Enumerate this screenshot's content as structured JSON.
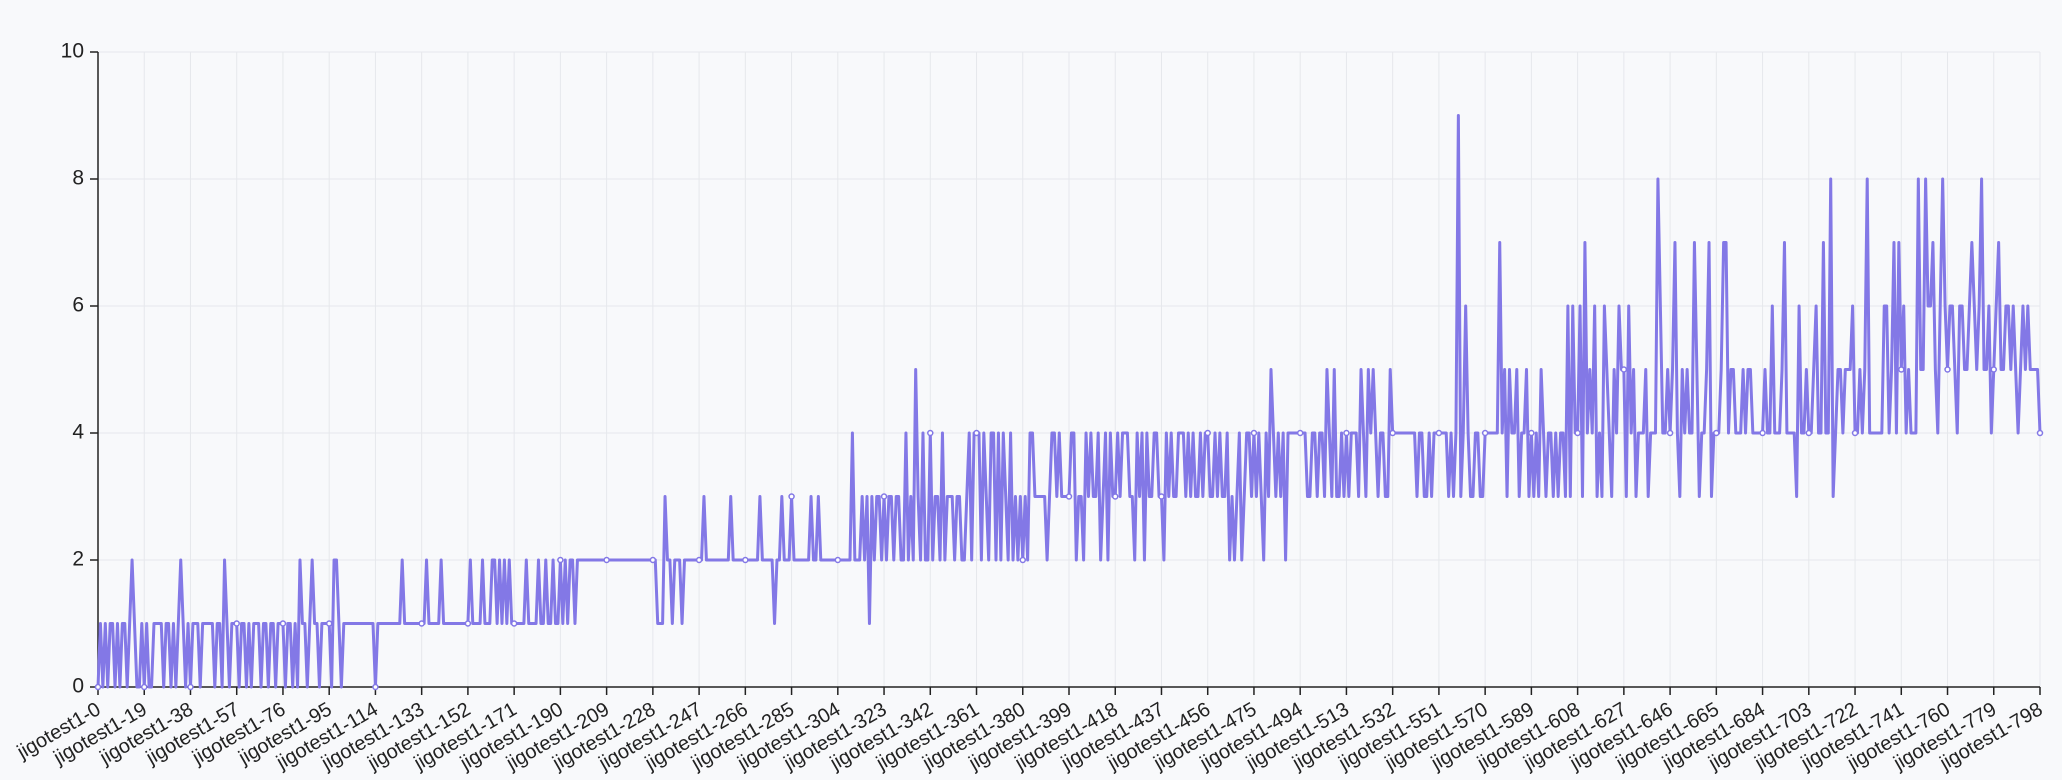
{
  "chart_data": {
    "type": "line",
    "title": "",
    "xlabel": "",
    "ylabel": "",
    "ylim": [
      0,
      10
    ],
    "y_ticks": [
      0,
      2,
      4,
      6,
      8,
      10
    ],
    "grid": true,
    "legend": "none",
    "x_tick_labels": [
      "jigotest1-0",
      "jigotest1-19",
      "jigotest1-38",
      "jigotest1-57",
      "jigotest1-76",
      "jigotest1-95",
      "jigotest1-114",
      "jigotest1-133",
      "jigotest1-152",
      "jigotest1-171",
      "jigotest1-190",
      "jigotest1-209",
      "jigotest1-228",
      "jigotest1-247",
      "jigotest1-266",
      "jigotest1-285",
      "jigotest1-304",
      "jigotest1-323",
      "jigotest1-342",
      "jigotest1-361",
      "jigotest1-380",
      "jigotest1-399",
      "jigotest1-418",
      "jigotest1-437",
      "jigotest1-456",
      "jigotest1-475",
      "jigotest1-494",
      "jigotest1-513",
      "jigotest1-532",
      "jigotest1-551",
      "jigotest1-570",
      "jigotest1-589",
      "jigotest1-608",
      "jigotest1-627",
      "jigotest1-646",
      "jigotest1-665",
      "jigotest1-684",
      "jigotest1-703",
      "jigotest1-722",
      "jigotest1-741",
      "jigotest1-760",
      "jigotest1-779",
      "jigotest1-798"
    ],
    "colors": {
      "series": "#8378e6",
      "grid": "#e6e8ec",
      "axis": "#222222",
      "background": "#f8f9fb"
    },
    "series": [
      {
        "x_prefix": "jigotest1-",
        "x_start": 0,
        "x_end": 798,
        "segments": [
          {
            "from": 0,
            "to": 18,
            "pattern": [
              0,
              1,
              0,
              1,
              0,
              1,
              1,
              0,
              1,
              0,
              1,
              1,
              0,
              1,
              2,
              1,
              0,
              0,
              1
            ]
          },
          {
            "from": 19,
            "to": 37,
            "pattern": [
              0,
              1,
              0,
              0,
              1,
              1,
              1,
              1,
              0,
              1,
              1,
              0,
              1,
              0,
              1,
              2,
              1,
              0,
              1
            ]
          },
          {
            "from": 38,
            "to": 56,
            "pattern": [
              0,
              1,
              1,
              1,
              0,
              1,
              1,
              1,
              1,
              1,
              0,
              1,
              1,
              0,
              2,
              1,
              0,
              1,
              1
            ]
          },
          {
            "from": 57,
            "to": 75,
            "pattern": [
              1,
              0,
              1,
              1,
              0,
              1,
              0,
              1,
              1,
              1,
              0,
              1,
              1,
              0,
              1,
              1,
              0,
              1,
              1
            ]
          },
          {
            "from": 76,
            "to": 94,
            "pattern": [
              1,
              0,
              1,
              1,
              0,
              1,
              0,
              2,
              1,
              1,
              0,
              1,
              2,
              1,
              1,
              0,
              1,
              1,
              1
            ]
          },
          {
            "from": 95,
            "to": 113,
            "pattern": [
              1,
              0,
              2,
              2,
              1,
              0,
              1,
              1,
              1,
              1,
              1,
              1,
              1,
              1,
              1,
              1,
              1,
              1,
              1
            ]
          },
          {
            "from": 114,
            "to": 132,
            "pattern": [
              0,
              1,
              1,
              1,
              1,
              1,
              1,
              1,
              1,
              1,
              1,
              2,
              1,
              1,
              1,
              1,
              1,
              1,
              1
            ]
          },
          {
            "from": 133,
            "to": 151,
            "pattern": [
              1,
              1,
              2,
              1,
              1,
              1,
              1,
              1,
              2,
              1,
              1,
              1,
              1,
              1,
              1,
              1,
              1,
              1,
              1
            ]
          },
          {
            "from": 152,
            "to": 170,
            "pattern": [
              1,
              2,
              1,
              1,
              1,
              1,
              2,
              1,
              1,
              1,
              2,
              2,
              1,
              2,
              1,
              2,
              1,
              2,
              1
            ]
          },
          {
            "from": 171,
            "to": 189,
            "pattern": [
              1,
              1,
              1,
              1,
              1,
              2,
              1,
              1,
              1,
              1,
              2,
              1,
              1,
              2,
              1,
              1,
              2,
              1,
              1
            ]
          },
          {
            "from": 190,
            "to": 208,
            "pattern": [
              2,
              1,
              2,
              1,
              2,
              2,
              1,
              2,
              2,
              2,
              2,
              2,
              2,
              2,
              2,
              2,
              2,
              2,
              2
            ]
          },
          {
            "from": 209,
            "to": 227,
            "pattern": [
              2,
              2,
              2,
              2,
              2,
              2,
              2,
              2,
              2,
              2,
              2,
              2,
              2,
              2,
              2,
              2,
              2,
              2,
              2
            ]
          },
          {
            "from": 228,
            "to": 246,
            "pattern": [
              2,
              2,
              1,
              1,
              1,
              3,
              2,
              2,
              1,
              2,
              2,
              2,
              1,
              2,
              2,
              2,
              2,
              2,
              2
            ]
          },
          {
            "from": 247,
            "to": 265,
            "pattern": [
              2,
              2,
              3,
              2,
              2,
              2,
              2,
              2,
              2,
              2,
              2,
              2,
              2,
              3,
              2,
              2,
              2,
              2,
              2
            ]
          },
          {
            "from": 266,
            "to": 284,
            "pattern": [
              2,
              2,
              2,
              2,
              2,
              2,
              3,
              2,
              2,
              2,
              2,
              2,
              1,
              2,
              2,
              3,
              2,
              2,
              2
            ]
          },
          {
            "from": 285,
            "to": 303,
            "pattern": [
              3,
              2,
              2,
              2,
              2,
              2,
              2,
              2,
              3,
              2,
              2,
              3,
              2,
              2,
              2,
              2,
              2,
              2,
              2
            ]
          },
          {
            "from": 304,
            "to": 322,
            "pattern": [
              2,
              2,
              2,
              2,
              2,
              2,
              4,
              2,
              2,
              2,
              3,
              2,
              3,
              1,
              3,
              2,
              3,
              3,
              2
            ]
          },
          {
            "from": 323,
            "to": 341,
            "pattern": [
              3,
              2,
              3,
              3,
              2,
              3,
              3,
              2,
              2,
              4,
              2,
              3,
              2,
              5,
              3,
              2,
              4,
              2,
              2
            ]
          },
          {
            "from": 342,
            "to": 360,
            "pattern": [
              4,
              2,
              3,
              3,
              2,
              4,
              2,
              3,
              3,
              3,
              2,
              3,
              3,
              2,
              2,
              3,
              4,
              2,
              4
            ]
          },
          {
            "from": 361,
            "to": 379,
            "pattern": [
              4,
              4,
              2,
              4,
              3,
              2,
              4,
              4,
              2,
              4,
              2,
              4,
              3,
              2,
              4,
              2,
              3,
              2,
              3
            ]
          },
          {
            "from": 380,
            "to": 398,
            "pattern": [
              2,
              3,
              2,
              4,
              4,
              3,
              3,
              3,
              3,
              3,
              2,
              3,
              4,
              4,
              3,
              4,
              3,
              3,
              3
            ]
          },
          {
            "from": 399,
            "to": 417,
            "pattern": [
              3,
              4,
              4,
              2,
              3,
              3,
              2,
              4,
              3,
              4,
              3,
              3,
              4,
              2,
              3,
              4,
              2,
              4,
              3
            ]
          },
          {
            "from": 418,
            "to": 436,
            "pattern": [
              3,
              4,
              3,
              4,
              4,
              4,
              3,
              3,
              2,
              4,
              3,
              4,
              2,
              4,
              3,
              3,
              4,
              4,
              3
            ]
          },
          {
            "from": 437,
            "to": 455,
            "pattern": [
              3,
              2,
              4,
              3,
              4,
              3,
              3,
              4,
              4,
              4,
              3,
              4,
              3,
              4,
              3,
              3,
              4,
              3,
              4
            ]
          },
          {
            "from": 456,
            "to": 474,
            "pattern": [
              4,
              3,
              3,
              4,
              3,
              4,
              3,
              3,
              4,
              2,
              3,
              2,
              3,
              4,
              2,
              3,
              4,
              4,
              3
            ]
          },
          {
            "from": 475,
            "to": 493,
            "pattern": [
              4,
              3,
              4,
              3,
              2,
              4,
              3,
              5,
              4,
              3,
              4,
              3,
              4,
              2,
              4,
              4,
              4,
              4,
              4
            ]
          },
          {
            "from": 494,
            "to": 512,
            "pattern": [
              4,
              4,
              4,
              3,
              3,
              4,
              4,
              3,
              4,
              4,
              3,
              5,
              4,
              3,
              5,
              3,
              3,
              4,
              3
            ]
          },
          {
            "from": 513,
            "to": 531,
            "pattern": [
              4,
              3,
              4,
              4,
              4,
              3,
              5,
              4,
              3,
              5,
              4,
              5,
              4,
              3,
              4,
              4,
              3,
              3,
              5
            ]
          },
          {
            "from": 532,
            "to": 550,
            "pattern": [
              4,
              4,
              4,
              4,
              4,
              4,
              4,
              4,
              4,
              4,
              3,
              4,
              4,
              3,
              3,
              4,
              3,
              4,
              4
            ]
          },
          {
            "from": 551,
            "to": 569,
            "pattern": [
              4,
              4,
              4,
              4,
              3,
              4,
              3,
              4,
              9,
              3,
              4,
              6,
              4,
              3,
              3,
              4,
              4,
              3,
              3
            ]
          },
          {
            "from": 570,
            "to": 588,
            "pattern": [
              4,
              4,
              4,
              4,
              4,
              4,
              7,
              4,
              5,
              3,
              5,
              4,
              4,
              5,
              3,
              4,
              4,
              5,
              3
            ]
          },
          {
            "from": 589,
            "to": 607,
            "pattern": [
              4,
              3,
              4,
              3,
              5,
              4,
              3,
              4,
              4,
              3,
              4,
              3,
              4,
              4,
              3,
              6,
              3,
              6,
              4
            ]
          },
          {
            "from": 608,
            "to": 626,
            "pattern": [
              4,
              6,
              3,
              7,
              4,
              5,
              4,
              6,
              3,
              4,
              3,
              6,
              5,
              4,
              3,
              5,
              4,
              6,
              5
            ]
          },
          {
            "from": 627,
            "to": 645,
            "pattern": [
              5,
              3,
              6,
              4,
              5,
              3,
              4,
              4,
              4,
              5,
              3,
              4,
              4,
              4,
              8,
              6,
              4,
              4,
              5
            ]
          },
          {
            "from": 646,
            "to": 664,
            "pattern": [
              4,
              5,
              7,
              4,
              3,
              5,
              4,
              5,
              4,
              4,
              7,
              5,
              3,
              4,
              4,
              5,
              7,
              3,
              4
            ]
          },
          {
            "from": 665,
            "to": 683,
            "pattern": [
              4,
              4,
              5,
              7,
              7,
              4,
              5,
              5,
              4,
              4,
              4,
              5,
              4,
              5,
              5,
              4,
              4,
              4,
              4
            ]
          },
          {
            "from": 684,
            "to": 702,
            "pattern": [
              4,
              5,
              4,
              4,
              6,
              4,
              4,
              4,
              5,
              7,
              4,
              4,
              4,
              4,
              3,
              6,
              4,
              4,
              5
            ]
          },
          {
            "from": 703,
            "to": 721,
            "pattern": [
              4,
              4,
              5,
              6,
              4,
              4,
              7,
              4,
              4,
              8,
              3,
              4,
              5,
              5,
              4,
              5,
              5,
              5,
              6
            ]
          },
          {
            "from": 722,
            "to": 740,
            "pattern": [
              4,
              4,
              5,
              4,
              5,
              8,
              4,
              4,
              4,
              4,
              4,
              4,
              6,
              6,
              4,
              5,
              7,
              4,
              7
            ]
          },
          {
            "from": 741,
            "to": 759,
            "pattern": [
              5,
              6,
              4,
              5,
              4,
              4,
              4,
              8,
              5,
              5,
              8,
              6,
              6,
              7,
              5,
              4,
              6,
              8,
              6
            ]
          },
          {
            "from": 760,
            "to": 778,
            "pattern": [
              5,
              6,
              6,
              5,
              4,
              6,
              6,
              5,
              5,
              6,
              7,
              6,
              5,
              6,
              8,
              5,
              5,
              6,
              4
            ]
          },
          {
            "from": 779,
            "to": 798,
            "pattern": [
              5,
              6,
              7,
              5,
              5,
              6,
              6,
              5,
              6,
              5,
              4,
              5,
              6,
              5,
              6,
              5,
              5,
              5,
              5,
              4
            ]
          }
        ]
      }
    ]
  }
}
